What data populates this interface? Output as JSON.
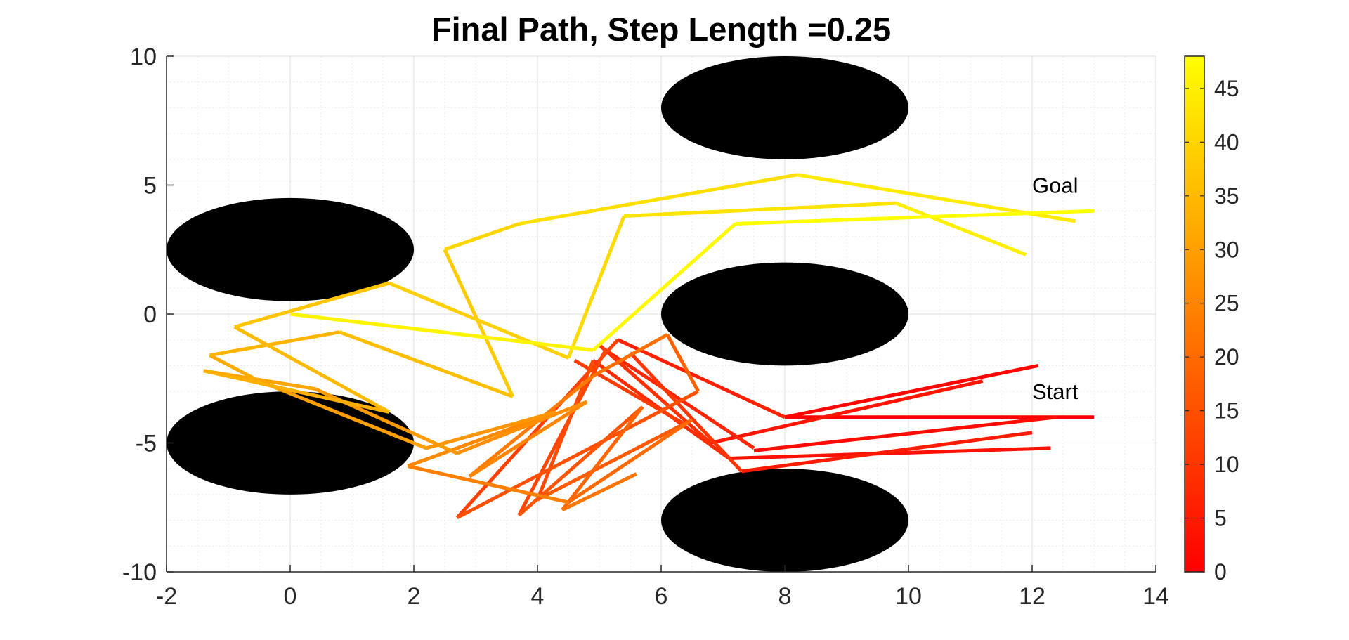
{
  "chart_data": {
    "type": "line",
    "title": "Final Path, Step Length =0.25",
    "xlim": [
      -2,
      14
    ],
    "ylim": [
      -10,
      10
    ],
    "x_ticks": [
      -2,
      0,
      2,
      4,
      6,
      8,
      10,
      12,
      14
    ],
    "y_ticks": [
      -10,
      -5,
      0,
      5,
      10
    ],
    "grid": "on, minor dotted",
    "colormap": "autumn",
    "colormap_colors": [
      "#ff0000",
      "#ffff00"
    ],
    "colorbar": {
      "position": "right",
      "range": [
        0,
        48
      ],
      "ticks": [
        0,
        5,
        10,
        15,
        20,
        25,
        30,
        35,
        40,
        45
      ]
    },
    "annotations": [
      {
        "text": "Goal",
        "x": 12,
        "y": 4.7
      },
      {
        "text": "Start",
        "x": 12,
        "y": -3.3
      }
    ],
    "obstacles": [
      {
        "shape": "ellipse",
        "cx": 0,
        "cy": 2.5,
        "rx": 2,
        "ry": 2,
        "color": "#000000"
      },
      {
        "shape": "ellipse",
        "cx": 0,
        "cy": -5,
        "rx": 2,
        "ry": 2,
        "color": "#000000"
      },
      {
        "shape": "ellipse",
        "cx": 8,
        "cy": 8,
        "rx": 2,
        "ry": 2,
        "color": "#000000"
      },
      {
        "shape": "ellipse",
        "cx": 8,
        "cy": 0,
        "rx": 2,
        "ry": 2,
        "color": "#000000"
      },
      {
        "shape": "ellipse",
        "cx": 8,
        "cy": -8,
        "rx": 2,
        "ry": 2,
        "color": "#000000"
      }
    ],
    "segments": [
      {
        "x": [
          13,
          8
        ],
        "y": [
          -4,
          -4
        ],
        "c": 0
      },
      {
        "x": [
          12.1,
          8
        ],
        "y": [
          -2,
          -4
        ],
        "c": 1
      },
      {
        "x": [
          12.4,
          7.5
        ],
        "y": [
          -4,
          -5.3
        ],
        "c": 2
      },
      {
        "x": [
          12.3,
          7.1
        ],
        "y": [
          -5.2,
          -5.6
        ],
        "c": 3
      },
      {
        "x": [
          11.2,
          6.8
        ],
        "y": [
          -2.6,
          -5
        ],
        "c": 4
      },
      {
        "x": [
          12,
          7.3
        ],
        "y": [
          -4.6,
          -6.1
        ],
        "c": 5
      },
      {
        "x": [
          8,
          5.3
        ],
        "y": [
          -4,
          -1
        ],
        "c": 6
      },
      {
        "x": [
          7.5,
          5.1
        ],
        "y": [
          -5.2,
          -1.4
        ],
        "c": 7
      },
      {
        "x": [
          7.1,
          4.9
        ],
        "y": [
          -5.6,
          -1.8
        ],
        "c": 8
      },
      {
        "x": [
          6.8,
          5
        ],
        "y": [
          -5,
          -1.2
        ],
        "c": 9
      },
      {
        "x": [
          7.3,
          5.5
        ],
        "y": [
          -6.1,
          -1.5
        ],
        "c": 10
      },
      {
        "x": [
          6.4,
          4.6
        ],
        "y": [
          -4.3,
          -1.8
        ],
        "c": 11
      },
      {
        "x": [
          5.3,
          2.7
        ],
        "y": [
          -1,
          -7.9
        ],
        "c": 12
      },
      {
        "x": [
          5.1,
          3.7
        ],
        "y": [
          -1.4,
          -7.8
        ],
        "c": 13
      },
      {
        "x": [
          4.9,
          4
        ],
        "y": [
          -1.8,
          -7.2
        ],
        "c": 14
      },
      {
        "x": [
          2.7,
          6.6
        ],
        "y": [
          -7.9,
          -3
        ],
        "c": 15
      },
      {
        "x": [
          3.7,
          5.7
        ],
        "y": [
          -7.8,
          -3.6
        ],
        "c": 16
      },
      {
        "x": [
          4,
          6.5
        ],
        "y": [
          -7.2,
          -4.1
        ],
        "c": 17
      },
      {
        "x": [
          6.6,
          6.1
        ],
        "y": [
          -3,
          -0.8
        ],
        "c": 18
      },
      {
        "x": [
          5.7,
          4.4
        ],
        "y": [
          -3.6,
          -7.6
        ],
        "c": 19
      },
      {
        "x": [
          6.5,
          4.5
        ],
        "y": [
          -4.1,
          -7.3
        ],
        "c": 20
      },
      {
        "x": [
          6.1,
          4.9
        ],
        "y": [
          -0.8,
          -2.4
        ],
        "c": 21
      },
      {
        "x": [
          4.4,
          5.6
        ],
        "y": [
          -7.6,
          -6.2
        ],
        "c": 22
      },
      {
        "x": [
          4.9,
          2.9
        ],
        "y": [
          -2.4,
          -6.3
        ],
        "c": 23
      },
      {
        "x": [
          4.5,
          1.9
        ],
        "y": [
          -7.3,
          -5.9
        ],
        "c": 24
      },
      {
        "x": [
          2.9,
          4.8
        ],
        "y": [
          -6.3,
          -3.4
        ],
        "c": 25
      },
      {
        "x": [
          1.9,
          4.3
        ],
        "y": [
          -5.9,
          -3.8
        ],
        "c": 26
      },
      {
        "x": [
          4.8,
          2.7
        ],
        "y": [
          -3.4,
          -5.4
        ],
        "c": 27
      },
      {
        "x": [
          4.3,
          2.2
        ],
        "y": [
          -3.8,
          -5.2
        ],
        "c": 28
      },
      {
        "x": [
          2.7,
          0.4
        ],
        "y": [
          -5.4,
          -2.9
        ],
        "c": 29
      },
      {
        "x": [
          2.2,
          -0.5
        ],
        "y": [
          -5.2,
          -2.6
        ],
        "c": 30
      },
      {
        "x": [
          0.4,
          -1.4
        ],
        "y": [
          -2.9,
          -2.2
        ],
        "c": 31
      },
      {
        "x": [
          -0.5,
          -1.3
        ],
        "y": [
          -2.6,
          -1.6
        ],
        "c": 32
      },
      {
        "x": [
          -1.4,
          1.6
        ],
        "y": [
          -2.2,
          -3.8
        ],
        "c": 33
      },
      {
        "x": [
          -1.3,
          0.8
        ],
        "y": [
          -1.6,
          -0.7
        ],
        "c": 34
      },
      {
        "x": [
          1.6,
          -0.9
        ],
        "y": [
          -3.8,
          -0.5
        ],
        "c": 35
      },
      {
        "x": [
          0.8,
          3.6
        ],
        "y": [
          -0.7,
          -3.2
        ],
        "c": 36
      },
      {
        "x": [
          -0.9,
          1.6
        ],
        "y": [
          -0.5,
          1.2
        ],
        "c": 37
      },
      {
        "x": [
          3.6,
          2.5
        ],
        "y": [
          -3.2,
          2.5
        ],
        "c": 38
      },
      {
        "x": [
          1.6,
          4.5
        ],
        "y": [
          1.2,
          -1.7
        ],
        "c": 39
      },
      {
        "x": [
          2.5,
          3.7
        ],
        "y": [
          2.5,
          3.5
        ],
        "c": 40
      },
      {
        "x": [
          4.5,
          5.4
        ],
        "y": [
          -1.7,
          3.8
        ],
        "c": 41
      },
      {
        "x": [
          3.7,
          8.2
        ],
        "y": [
          3.5,
          5.4
        ],
        "c": 42
      },
      {
        "x": [
          5.4,
          9.8
        ],
        "y": [
          3.8,
          4.3
        ],
        "c": 43
      },
      {
        "x": [
          8.2,
          12.7
        ],
        "y": [
          5.4,
          3.6
        ],
        "c": 44
      },
      {
        "x": [
          9.8,
          11.9
        ],
        "y": [
          4.3,
          2.3
        ],
        "c": 45
      },
      {
        "x": [
          0,
          4.9
        ],
        "y": [
          0,
          -1.4
        ],
        "c": 46
      },
      {
        "x": [
          4.9,
          7.2
        ],
        "y": [
          -1.4,
          3.5
        ],
        "c": 47
      },
      {
        "x": [
          7.2,
          13
        ],
        "y": [
          3.5,
          4
        ],
        "c": 48
      }
    ]
  }
}
